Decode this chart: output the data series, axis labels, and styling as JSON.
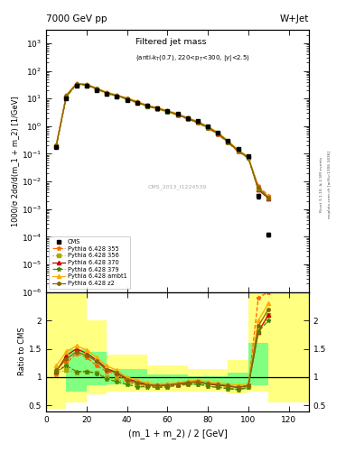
{
  "title_top": "7000 GeV pp",
  "title_right": "W+Jet",
  "plot_title": "Filtered jet mass",
  "plot_subtitle": "(anti-k_{T}(0.7), 220<p_{T}<300, |y|<2.5)",
  "xlabel": "(m_1 + m_2) / 2 [GeV]",
  "ylabel_main": "1000/σ 2dσ/d(m_1 + m_2) [1/GeV]",
  "ylabel_ratio": "Ratio to CMS",
  "watermark": "CMS_2013_I1224539",
  "rivet_text": "Rivet 3.1.10, ≥ 2.5M events",
  "mcplots_text": "mcplots.cern.ch [arXiv:1306.3436]",
  "x_data": [
    5,
    10,
    15,
    20,
    25,
    30,
    35,
    40,
    45,
    50,
    55,
    60,
    65,
    70,
    75,
    80,
    85,
    90,
    95,
    100,
    105,
    110,
    120
  ],
  "cms_y": [
    0.18,
    10.0,
    30.0,
    28.0,
    20.0,
    15.0,
    12.0,
    9.0,
    7.0,
    5.5,
    4.5,
    3.5,
    2.8,
    2.0,
    1.5,
    1.0,
    0.6,
    0.3,
    0.15,
    0.08,
    0.003,
    0.00012,
    null
  ],
  "cms_yerr": [
    0.02,
    0.5,
    1.0,
    1.0,
    0.8,
    0.6,
    0.5,
    0.4,
    0.3,
    0.25,
    0.2,
    0.15,
    0.12,
    0.1,
    0.08,
    0.06,
    0.04,
    0.02,
    0.01,
    0.005,
    0.0005,
    2e-05,
    null
  ],
  "p355_y": [
    0.18,
    12.0,
    33.0,
    31.0,
    22.0,
    15.5,
    12.5,
    9.5,
    7.0,
    5.2,
    4.2,
    3.3,
    2.5,
    1.8,
    1.3,
    0.85,
    0.5,
    0.25,
    0.12,
    0.07,
    0.007,
    0.003,
    null
  ],
  "p356_y": [
    0.19,
    11.0,
    32.0,
    30.0,
    21.5,
    15.0,
    12.0,
    9.2,
    7.0,
    5.3,
    4.3,
    3.4,
    2.6,
    1.9,
    1.4,
    0.9,
    0.55,
    0.27,
    0.13,
    0.075,
    0.005,
    0.0025,
    null
  ],
  "p370_y": [
    0.2,
    13.0,
    35.0,
    32.0,
    23.0,
    16.0,
    13.0,
    10.0,
    7.5,
    5.5,
    4.5,
    3.5,
    2.7,
    1.9,
    1.4,
    0.9,
    0.55,
    0.27,
    0.13,
    0.075,
    0.005,
    0.0025,
    null
  ],
  "p379_y": [
    0.2,
    11.5,
    32.5,
    30.5,
    22.0,
    15.5,
    12.5,
    9.5,
    7.2,
    5.3,
    4.3,
    3.4,
    2.6,
    1.85,
    1.35,
    0.88,
    0.53,
    0.26,
    0.125,
    0.072,
    0.005,
    0.0024,
    null
  ],
  "pambt1_y": [
    0.22,
    13.5,
    35.5,
    33.0,
    24.0,
    17.0,
    13.5,
    10.5,
    8.0,
    5.8,
    4.7,
    3.7,
    2.85,
    2.05,
    1.5,
    1.0,
    0.6,
    0.3,
    0.14,
    0.08,
    0.006,
    0.0028,
    null
  ],
  "pz2_y": [
    0.2,
    12.5,
    34.0,
    32.0,
    23.0,
    16.0,
    13.0,
    10.0,
    7.5,
    5.5,
    4.5,
    3.5,
    2.7,
    1.95,
    1.42,
    0.92,
    0.56,
    0.28,
    0.13,
    0.075,
    0.006,
    0.0026,
    null
  ],
  "ratio_x": [
    5,
    10,
    15,
    20,
    25,
    30,
    35,
    40,
    45,
    50,
    55,
    60,
    65,
    70,
    75,
    80,
    85,
    90,
    95,
    100,
    105,
    110
  ],
  "ratio_p355": [
    1.05,
    1.25,
    1.42,
    1.35,
    1.2,
    1.1,
    1.05,
    0.92,
    0.88,
    0.84,
    0.82,
    0.83,
    0.85,
    0.87,
    0.88,
    0.84,
    0.82,
    0.8,
    0.78,
    0.82,
    2.4,
    2.5
  ],
  "ratio_p356": [
    1.08,
    1.12,
    1.08,
    1.1,
    1.08,
    1.0,
    0.96,
    0.9,
    0.86,
    0.85,
    0.83,
    0.84,
    0.87,
    0.89,
    0.9,
    0.87,
    0.85,
    0.83,
    0.82,
    0.85,
    1.8,
    2.1
  ],
  "ratio_p370": [
    1.1,
    1.38,
    1.5,
    1.42,
    1.3,
    1.15,
    1.08,
    0.97,
    0.92,
    0.87,
    0.85,
    0.86,
    0.88,
    0.9,
    0.92,
    0.88,
    0.86,
    0.84,
    0.82,
    0.85,
    1.8,
    2.1
  ],
  "ratio_p379": [
    1.1,
    1.2,
    1.1,
    1.1,
    1.07,
    0.97,
    0.92,
    0.87,
    0.83,
    0.83,
    0.82,
    0.83,
    0.86,
    0.88,
    0.88,
    0.84,
    0.82,
    0.8,
    0.78,
    0.82,
    1.8,
    2.0
  ],
  "ratio_pambt1": [
    1.2,
    1.45,
    1.55,
    1.48,
    1.35,
    1.2,
    1.12,
    1.0,
    0.95,
    0.9,
    0.88,
    0.89,
    0.9,
    0.93,
    0.95,
    0.92,
    0.9,
    0.88,
    0.86,
    0.88,
    2.0,
    2.3
  ],
  "ratio_pz2": [
    1.12,
    1.32,
    1.45,
    1.38,
    1.28,
    1.12,
    1.08,
    0.95,
    0.9,
    0.86,
    0.85,
    0.86,
    0.88,
    0.91,
    0.92,
    0.89,
    0.87,
    0.85,
    0.82,
    0.85,
    1.9,
    2.2
  ],
  "band_yellow_edges": [
    0,
    10,
    20,
    30,
    50,
    70,
    90,
    100,
    110,
    130
  ],
  "band_yellow_lo": [
    0.45,
    0.55,
    0.7,
    0.75,
    0.75,
    0.75,
    0.72,
    0.75,
    0.55,
    0.55
  ],
  "band_yellow_hi": [
    2.5,
    2.5,
    2.0,
    1.4,
    1.2,
    1.15,
    1.3,
    2.5,
    2.5,
    2.5
  ],
  "band_green_edges": [
    10,
    20,
    30,
    50,
    70,
    90,
    100,
    110
  ],
  "band_green_lo": [
    0.75,
    0.85,
    0.88,
    0.88,
    0.85,
    0.77,
    0.85,
    0.85
  ],
  "band_green_hi": [
    1.5,
    1.45,
    1.15,
    1.05,
    1.02,
    1.08,
    1.6,
    1.6
  ],
  "color_cms": "#000000",
  "color_p355": "#ff6600",
  "color_p356": "#aaaa00",
  "color_p370": "#cc0000",
  "color_p379": "#448800",
  "color_pambt1": "#ffaa00",
  "color_pz2": "#886600",
  "ls_p355": "--",
  "ls_p356": ":",
  "ls_p370": "-",
  "ls_p379": "--",
  "ls_pambt1": "-",
  "ls_pz2": "-",
  "color_yellow": "#ffff80",
  "color_green": "#80ff80"
}
